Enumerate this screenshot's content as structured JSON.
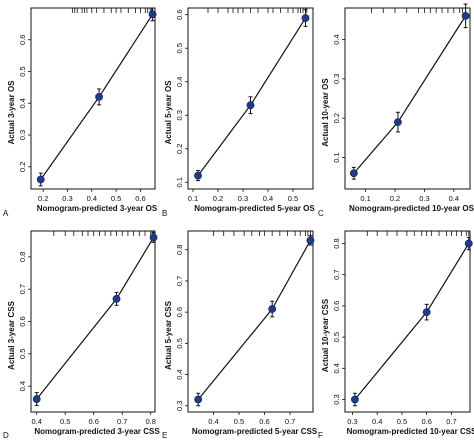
{
  "chart_data": [
    {
      "panel": "A",
      "type": "scatter",
      "xlabel": "Nomogram-predicted 3-year OS",
      "ylabel": "Actual 3-year OS",
      "xlim": [
        0.15,
        0.66
      ],
      "ylim": [
        0.13,
        0.7
      ],
      "xticks": [
        0.2,
        0.3,
        0.4,
        0.5,
        0.6
      ],
      "yticks": [
        0.2,
        0.3,
        0.4,
        0.5,
        0.6
      ],
      "x": [
        0.19,
        0.43,
        0.65
      ],
      "y": [
        0.16,
        0.42,
        0.68
      ],
      "errors": [
        0.02,
        0.025,
        0.02
      ],
      "rug": [
        0.32,
        0.33,
        0.34,
        0.36,
        0.37,
        0.38,
        0.4,
        0.42,
        0.45,
        0.48,
        0.5,
        0.52,
        0.55,
        0.58,
        0.6,
        0.62,
        0.63,
        0.64,
        0.645,
        0.65
      ]
    },
    {
      "panel": "B",
      "type": "scatter",
      "xlabel": "Nomogram-predicted 5-year OS",
      "ylabel": "Actual 5-year OS",
      "xlim": [
        0.08,
        0.58
      ],
      "ylim": [
        0.08,
        0.62
      ],
      "xticks": [
        0.1,
        0.2,
        0.3,
        0.4,
        0.5
      ],
      "yticks": [
        0.1,
        0.2,
        0.3,
        0.4,
        0.5,
        0.6
      ],
      "x": [
        0.12,
        0.33,
        0.55
      ],
      "y": [
        0.12,
        0.33,
        0.59
      ],
      "errors": [
        0.015,
        0.025,
        0.025
      ],
      "rug": [
        0.16,
        0.2,
        0.24,
        0.26,
        0.28,
        0.3,
        0.33,
        0.36,
        0.4,
        0.42,
        0.45,
        0.48,
        0.5,
        0.52,
        0.53,
        0.54,
        0.55,
        0.555
      ]
    },
    {
      "panel": "C",
      "type": "scatter",
      "xlabel": "Nomogram-predicted 10-year OS",
      "ylabel": "Actual 10-year OS",
      "xlim": [
        0.03,
        0.455
      ],
      "ylim": [
        0.02,
        0.48
      ],
      "xticks": [
        0.1,
        0.2,
        0.3,
        0.4
      ],
      "yticks": [
        0.1,
        0.2,
        0.3,
        0.4
      ],
      "x": [
        0.06,
        0.21,
        0.44
      ],
      "y": [
        0.06,
        0.19,
        0.46
      ],
      "errors": [
        0.015,
        0.025,
        0.03
      ],
      "rug": [
        0.12,
        0.16,
        0.2,
        0.24,
        0.28,
        0.3,
        0.32,
        0.34,
        0.36,
        0.38,
        0.4,
        0.42,
        0.43,
        0.44
      ]
    },
    {
      "panel": "D",
      "type": "scatter",
      "xlabel": "Nomogram-predicted 3-year CSS",
      "ylabel": "Actual 3-year CSS",
      "xlim": [
        0.38,
        0.815
      ],
      "ylim": [
        0.32,
        0.88
      ],
      "xticks": [
        0.4,
        0.5,
        0.6,
        0.7,
        0.8
      ],
      "yticks": [
        0.4,
        0.5,
        0.6,
        0.7,
        0.8
      ],
      "x": [
        0.4,
        0.68,
        0.81
      ],
      "y": [
        0.36,
        0.67,
        0.86
      ],
      "errors": [
        0.02,
        0.02,
        0.015
      ],
      "rug": [
        0.46,
        0.5,
        0.53,
        0.56,
        0.58,
        0.6,
        0.62,
        0.64,
        0.66,
        0.68,
        0.7,
        0.72,
        0.74,
        0.76,
        0.78,
        0.8,
        0.805,
        0.81
      ]
    },
    {
      "panel": "E",
      "type": "scatter",
      "xlabel": "Nomogram-predicted 5-year CSS",
      "ylabel": "Actual 5-year CSS",
      "xlim": [
        0.3,
        0.79
      ],
      "ylim": [
        0.28,
        0.86
      ],
      "xticks": [
        0.4,
        0.5,
        0.6,
        0.7
      ],
      "yticks": [
        0.3,
        0.4,
        0.5,
        0.6,
        0.7,
        0.8
      ],
      "x": [
        0.34,
        0.63,
        0.78
      ],
      "y": [
        0.32,
        0.61,
        0.83
      ],
      "errors": [
        0.02,
        0.025,
        0.015
      ],
      "rug": [
        0.4,
        0.44,
        0.48,
        0.52,
        0.55,
        0.58,
        0.6,
        0.63,
        0.66,
        0.69,
        0.72,
        0.74,
        0.76,
        0.77,
        0.78
      ]
    },
    {
      "panel": "F",
      "type": "scatter",
      "xlabel": "Nomogram-predicted 10-year CSS",
      "ylabel": "Actual 10-year CSS",
      "xlim": [
        0.27,
        0.775
      ],
      "ylim": [
        0.26,
        0.84
      ],
      "xticks": [
        0.3,
        0.4,
        0.5,
        0.6,
        0.7
      ],
      "yticks": [
        0.3,
        0.4,
        0.5,
        0.6,
        0.7,
        0.8
      ],
      "x": [
        0.31,
        0.6,
        0.77
      ],
      "y": [
        0.3,
        0.58,
        0.8
      ],
      "errors": [
        0.02,
        0.025,
        0.02
      ],
      "rug": [
        0.36,
        0.4,
        0.44,
        0.48,
        0.52,
        0.55,
        0.58,
        0.6,
        0.62,
        0.65,
        0.68,
        0.7,
        0.72,
        0.74,
        0.76,
        0.77
      ]
    }
  ]
}
